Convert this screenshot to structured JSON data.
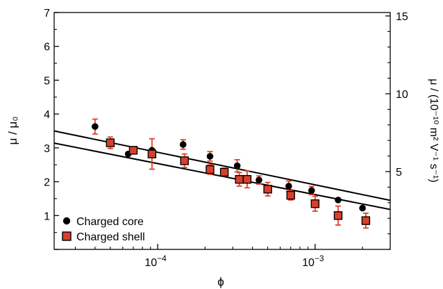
{
  "chart_data": {
    "type": "scatter",
    "xlabel": "ϕ",
    "ylabel_left": "μ / μ₀",
    "ylabel_right": "μ / (10⁻¹⁰ m² V⁻¹ s⁻¹)",
    "x_scale": "log",
    "xlim": [
      2.2e-05,
      0.003
    ],
    "ylim_left": [
      0,
      7
    ],
    "ylim_right": [
      0,
      15.22
    ],
    "x_ticks": [
      {
        "value": 0.0001,
        "base": "10",
        "exp": "−4"
      },
      {
        "value": 0.001,
        "base": "10",
        "exp": "−3"
      }
    ],
    "y_ticks_left": [
      "1",
      "2",
      "3",
      "4",
      "5",
      "6",
      "7"
    ],
    "y_ticks_right": [
      "5",
      "10",
      "15"
    ],
    "grid": false,
    "legend_position": "bottom-left",
    "colors": {
      "core": "#000000",
      "shell": "#d9402b",
      "error": "#e0402b",
      "line": "#000000"
    },
    "series": [
      {
        "name": "Charged core",
        "marker": "circle",
        "points": [
          {
            "x": 4e-05,
            "y": 3.63,
            "err": 0.22
          },
          {
            "x": 6.5e-05,
            "y": 2.82,
            "err": 0.0
          },
          {
            "x": 9.2e-05,
            "y": 2.93,
            "err": 0.0
          },
          {
            "x": 0.000145,
            "y": 3.1,
            "err": 0.14
          },
          {
            "x": 0.000215,
            "y": 2.75,
            "err": 0.14
          },
          {
            "x": 0.00032,
            "y": 2.47,
            "err": 0.18
          },
          {
            "x": 0.00044,
            "y": 2.05,
            "err": 0.12
          },
          {
            "x": 0.00068,
            "y": 1.87,
            "err": 0.15
          },
          {
            "x": 0.00095,
            "y": 1.74,
            "err": 0.12
          },
          {
            "x": 0.0014,
            "y": 1.46,
            "err": 0.0
          },
          {
            "x": 0.002,
            "y": 1.22,
            "err": 0.0
          }
        ]
      },
      {
        "name": "Charged shell",
        "marker": "square",
        "points": [
          {
            "x": 5e-05,
            "y": 3.15,
            "err": 0.17
          },
          {
            "x": 7e-05,
            "y": 2.93,
            "err": 0.1
          },
          {
            "x": 9.2e-05,
            "y": 2.82,
            "err": 0.45
          },
          {
            "x": 0.000148,
            "y": 2.62,
            "err": 0.2
          },
          {
            "x": 0.000215,
            "y": 2.36,
            "err": 0.14
          },
          {
            "x": 0.000265,
            "y": 2.28,
            "err": 0.12
          },
          {
            "x": 0.00033,
            "y": 2.07,
            "err": 0.2
          },
          {
            "x": 0.00037,
            "y": 2.07,
            "err": 0.25
          },
          {
            "x": 0.0005,
            "y": 1.78,
            "err": 0.2
          },
          {
            "x": 0.0007,
            "y": 1.6,
            "err": 0.14
          },
          {
            "x": 0.001,
            "y": 1.35,
            "err": 0.22
          },
          {
            "x": 0.0014,
            "y": 1.0,
            "err": 0.28
          },
          {
            "x": 0.0021,
            "y": 0.85,
            "err": 0.22
          }
        ]
      }
    ],
    "fit_lines": [
      {
        "x": [
          2.2e-05,
          0.003
        ],
        "y": [
          3.5,
          1.45
        ]
      },
      {
        "x": [
          2.2e-05,
          0.003
        ],
        "y": [
          3.14,
          1.18
        ]
      }
    ]
  }
}
